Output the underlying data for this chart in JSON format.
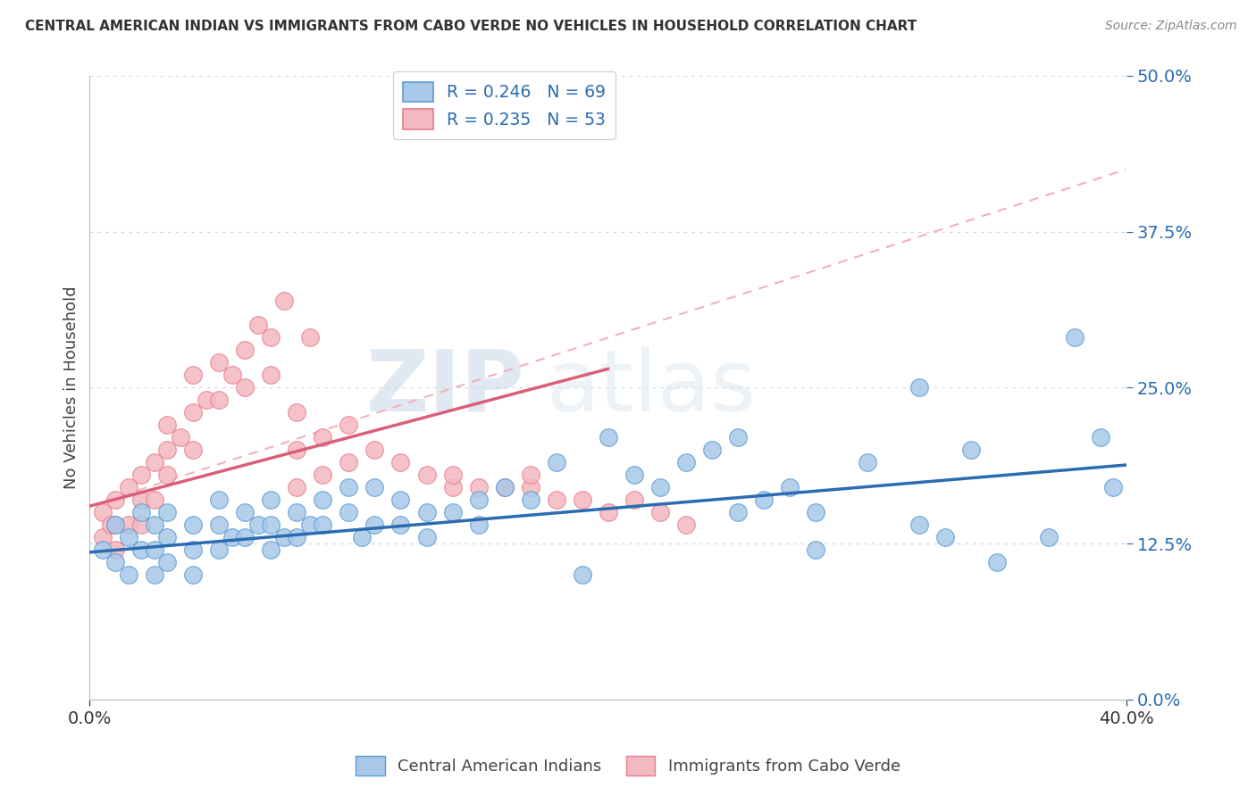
{
  "title": "CENTRAL AMERICAN INDIAN VS IMMIGRANTS FROM CABO VERDE NO VEHICLES IN HOUSEHOLD CORRELATION CHART",
  "source": "Source: ZipAtlas.com",
  "ylabel": "No Vehicles in Household",
  "xlim": [
    0.0,
    0.4
  ],
  "ylim": [
    0.0,
    0.5
  ],
  "ytick_labels": [
    "0.0%",
    "12.5%",
    "25.0%",
    "37.5%",
    "50.0%"
  ],
  "ytick_values": [
    0.0,
    0.125,
    0.25,
    0.375,
    0.5
  ],
  "xtick_labels": [
    "0.0%",
    "40.0%"
  ],
  "xtick_values": [
    0.0,
    0.4
  ],
  "blue_R": 0.246,
  "blue_N": 69,
  "pink_R": 0.235,
  "pink_N": 53,
  "blue_color": "#a8c8e8",
  "pink_color": "#f4b8c0",
  "blue_edge_color": "#5b9bd5",
  "pink_edge_color": "#e87d8a",
  "blue_line_color": "#2b6cb0",
  "pink_line_color": "#d95f7a",
  "pink_dash_color": "#f4b0bb",
  "legend_text_color": "#2b6cb0",
  "ytick_color": "#2b6cb0",
  "background_color": "#ffffff",
  "watermark_zip": "ZIP",
  "watermark_atlas": "atlas",
  "grid_color": "#d0d8e8",
  "blue_x": [
    0.005,
    0.01,
    0.01,
    0.015,
    0.015,
    0.02,
    0.02,
    0.025,
    0.025,
    0.025,
    0.03,
    0.03,
    0.03,
    0.04,
    0.04,
    0.04,
    0.05,
    0.05,
    0.05,
    0.055,
    0.06,
    0.06,
    0.065,
    0.07,
    0.07,
    0.07,
    0.075,
    0.08,
    0.08,
    0.085,
    0.09,
    0.09,
    0.1,
    0.1,
    0.105,
    0.11,
    0.11,
    0.12,
    0.12,
    0.13,
    0.13,
    0.14,
    0.15,
    0.15,
    0.16,
    0.17,
    0.18,
    0.19,
    0.2,
    0.21,
    0.22,
    0.23,
    0.24,
    0.25,
    0.26,
    0.27,
    0.28,
    0.3,
    0.32,
    0.33,
    0.35,
    0.37,
    0.38,
    0.39,
    0.395,
    0.32,
    0.34,
    0.28,
    0.25
  ],
  "blue_y": [
    0.12,
    0.14,
    0.11,
    0.13,
    0.1,
    0.15,
    0.12,
    0.14,
    0.12,
    0.1,
    0.15,
    0.13,
    0.11,
    0.14,
    0.12,
    0.1,
    0.16,
    0.14,
    0.12,
    0.13,
    0.15,
    0.13,
    0.14,
    0.16,
    0.14,
    0.12,
    0.13,
    0.15,
    0.13,
    0.14,
    0.16,
    0.14,
    0.17,
    0.15,
    0.13,
    0.17,
    0.14,
    0.16,
    0.14,
    0.15,
    0.13,
    0.15,
    0.16,
    0.14,
    0.17,
    0.16,
    0.19,
    0.1,
    0.21,
    0.18,
    0.17,
    0.19,
    0.2,
    0.21,
    0.16,
    0.17,
    0.12,
    0.19,
    0.14,
    0.13,
    0.11,
    0.13,
    0.29,
    0.21,
    0.17,
    0.25,
    0.2,
    0.15,
    0.15
  ],
  "pink_x": [
    0.005,
    0.005,
    0.008,
    0.01,
    0.01,
    0.01,
    0.015,
    0.015,
    0.02,
    0.02,
    0.02,
    0.025,
    0.025,
    0.03,
    0.03,
    0.03,
    0.035,
    0.04,
    0.04,
    0.04,
    0.045,
    0.05,
    0.05,
    0.055,
    0.06,
    0.06,
    0.065,
    0.07,
    0.07,
    0.075,
    0.08,
    0.08,
    0.085,
    0.09,
    0.09,
    0.1,
    0.1,
    0.11,
    0.12,
    0.13,
    0.14,
    0.15,
    0.16,
    0.17,
    0.18,
    0.19,
    0.2,
    0.21,
    0.22,
    0.23,
    0.08,
    0.14,
    0.17
  ],
  "pink_y": [
    0.15,
    0.13,
    0.14,
    0.16,
    0.14,
    0.12,
    0.17,
    0.14,
    0.18,
    0.16,
    0.14,
    0.19,
    0.16,
    0.22,
    0.2,
    0.18,
    0.21,
    0.26,
    0.23,
    0.2,
    0.24,
    0.27,
    0.24,
    0.26,
    0.28,
    0.25,
    0.3,
    0.29,
    0.26,
    0.32,
    0.23,
    0.2,
    0.29,
    0.21,
    0.18,
    0.22,
    0.19,
    0.2,
    0.19,
    0.18,
    0.17,
    0.17,
    0.17,
    0.17,
    0.16,
    0.16,
    0.15,
    0.16,
    0.15,
    0.14,
    0.17,
    0.18,
    0.18
  ],
  "blue_trend": [
    0.0,
    0.4,
    0.118,
    0.188
  ],
  "pink_trend_solid": [
    0.0,
    0.2,
    0.155,
    0.265
  ],
  "pink_trend_dash": [
    0.0,
    0.4,
    0.155,
    0.425
  ]
}
